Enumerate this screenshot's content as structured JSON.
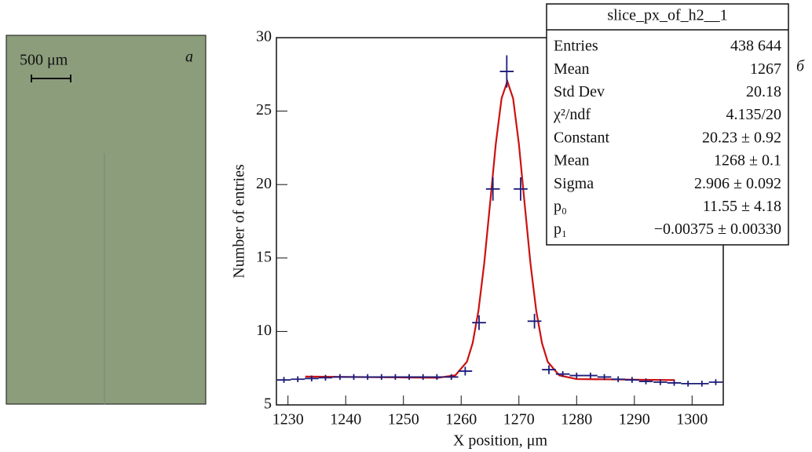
{
  "image_panel": {
    "label": "a",
    "scale_bar": "500 μm"
  },
  "chart_data": {
    "type": "scatter",
    "panel_label": "б",
    "x_label": "X position, μm",
    "y_label": "Number of entries",
    "xlim": [
      1228,
      1305.4
    ],
    "xticks": [
      1230,
      1240,
      1250,
      1260,
      1270,
      1280,
      1290,
      1300
    ],
    "ylim": [
      5,
      30
    ],
    "yticks": [
      5,
      10,
      15,
      20,
      25,
      30
    ],
    "series": [
      {
        "name": "slice_px_of_h2__1",
        "color": "#1c1c7a",
        "bin_width": 2.4,
        "x": [
          1229.3,
          1231.7,
          1234.1,
          1236.5,
          1239,
          1241.4,
          1243.8,
          1246.2,
          1248.6,
          1251,
          1253.4,
          1255.8,
          1258.3,
          1260.7,
          1263.1,
          1265.5,
          1267.9,
          1270.3,
          1272.7,
          1275.2,
          1277.6,
          1280,
          1282.4,
          1284.8,
          1287.2,
          1289.6,
          1292,
          1294.5,
          1296.9,
          1299.3,
          1301.7,
          1304.1
        ],
        "values": [
          6.7,
          6.75,
          6.8,
          6.85,
          6.9,
          6.9,
          6.9,
          6.9,
          6.9,
          6.9,
          6.9,
          6.9,
          6.9,
          7.3,
          10.6,
          19.7,
          27.7,
          19.7,
          10.7,
          7.4,
          7.1,
          7.0,
          7.0,
          6.9,
          6.75,
          6.7,
          6.6,
          6.55,
          6.5,
          6.45,
          6.45,
          6.55
        ],
        "errors": [
          0.2,
          0.2,
          0.2,
          0.2,
          0.2,
          0.2,
          0.2,
          0.2,
          0.2,
          0.2,
          0.2,
          0.2,
          0.2,
          0.3,
          0.5,
          0.8,
          1.1,
          0.8,
          0.5,
          0.3,
          0.2,
          0.2,
          0.2,
          0.2,
          0.2,
          0.2,
          0.2,
          0.2,
          0.2,
          0.2,
          0.2,
          0.2
        ]
      }
    ],
    "fit": {
      "color": "#cc1111",
      "x": [
        1233,
        1250,
        1256,
        1259,
        1261,
        1262,
        1263,
        1264,
        1265,
        1266,
        1267,
        1268,
        1269,
        1270,
        1271,
        1272,
        1273,
        1274,
        1275,
        1277,
        1280,
        1290,
        1297
      ],
      "values": [
        6.93,
        6.87,
        6.85,
        7.02,
        7.94,
        9.22,
        11.43,
        14.66,
        18.68,
        22.77,
        25.87,
        27.03,
        25.86,
        22.76,
        18.67,
        14.65,
        11.42,
        9.21,
        7.93,
        7.01,
        6.76,
        6.72,
        6.69
      ]
    },
    "stats": {
      "title": "slice_px_of_h2__1",
      "rows": [
        [
          "Entries",
          "438 644"
        ],
        [
          "Mean",
          "1267"
        ],
        [
          "Std Dev",
          "20.18"
        ],
        [
          "χ²/ndf",
          "4.135/20"
        ],
        [
          "Constant",
          "20.23 ± 0.92"
        ],
        [
          "Mean",
          "1268 ± 0.1"
        ],
        [
          "Sigma",
          "2.906 ± 0.092"
        ],
        [
          "p₀",
          "11.55 ± 4.18"
        ],
        [
          "p₁",
          "−0.00375 ± 0.00330"
        ]
      ]
    }
  }
}
